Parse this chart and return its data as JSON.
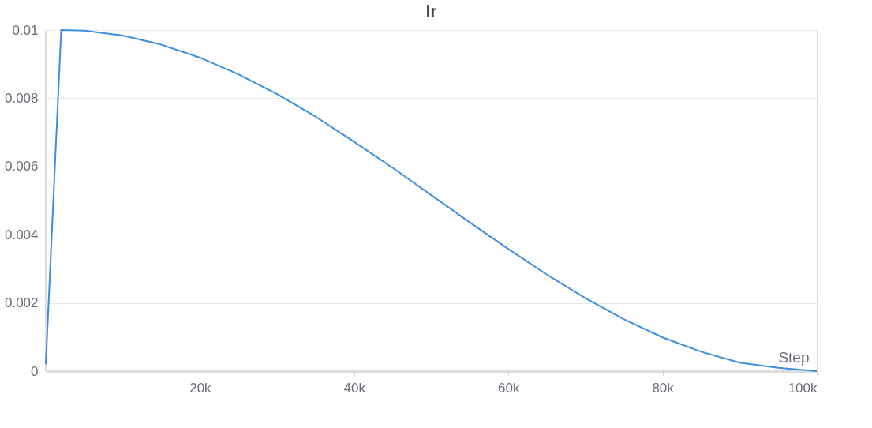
{
  "chart_data": {
    "type": "line",
    "title": "lr",
    "xlabel": "Step",
    "x": [
      0,
      2000,
      5000,
      10000,
      15000,
      20000,
      25000,
      30000,
      35000,
      40000,
      45000,
      50000,
      55000,
      60000,
      65000,
      70000,
      75000,
      80000,
      85000,
      90000,
      95000,
      100000
    ],
    "series": [
      {
        "color": "#3a8ee0",
        "values": [
          0.0002,
          0.01,
          0.00998,
          0.00984,
          0.00957,
          0.00919,
          0.0087,
          0.00812,
          0.00746,
          0.00672,
          0.00596,
          0.00516,
          0.00436,
          0.00358,
          0.00283,
          0.00214,
          0.00152,
          0.00099,
          0.00057,
          0.00025,
          0.0001,
          0
        ]
      }
    ],
    "xlim": [
      0,
      100000
    ],
    "xticks": [
      {
        "value": 20000,
        "label": "20k"
      },
      {
        "value": 40000,
        "label": "40k"
      },
      {
        "value": 60000,
        "label": "60k"
      },
      {
        "value": 80000,
        "label": "80k"
      },
      {
        "value": 100000,
        "label": "100k"
      }
    ],
    "ylim": [
      0,
      0.01
    ],
    "yticks": [
      0,
      0.002,
      0.004,
      0.006,
      0.008,
      0.01
    ],
    "grid": "y",
    "marker": "none",
    "line_style": "solid"
  }
}
